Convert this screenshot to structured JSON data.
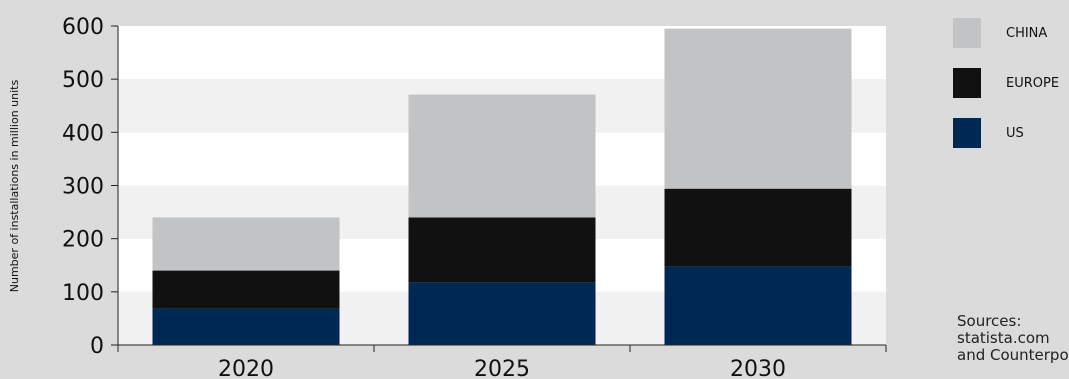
{
  "chart_data": {
    "type": "bar",
    "stacked": true,
    "categories": [
      "2020",
      "2025",
      "2030"
    ],
    "series": [
      {
        "name": "US",
        "values": [
          68,
          117,
          147
        ],
        "color": "#002855"
      },
      {
        "name": "EUROPE",
        "values": [
          72,
          123,
          147
        ],
        "color": "#111111"
      },
      {
        "name": "CHINA",
        "values": [
          100,
          231,
          301
        ],
        "color": "#c2c3c4"
      }
    ],
    "ylabel": "Number of installations in million units",
    "ylim": [
      0,
      600
    ],
    "yticks": [
      0,
      100,
      200,
      300,
      400,
      500,
      600
    ],
    "grid": "alternating horizontal bands",
    "legend_position": "right",
    "legend_order": [
      "CHINA",
      "EUROPE",
      "US"
    ]
  },
  "sources": {
    "line1": "Sources:",
    "line2": "statista.com",
    "line3": "and Counterpoint"
  }
}
